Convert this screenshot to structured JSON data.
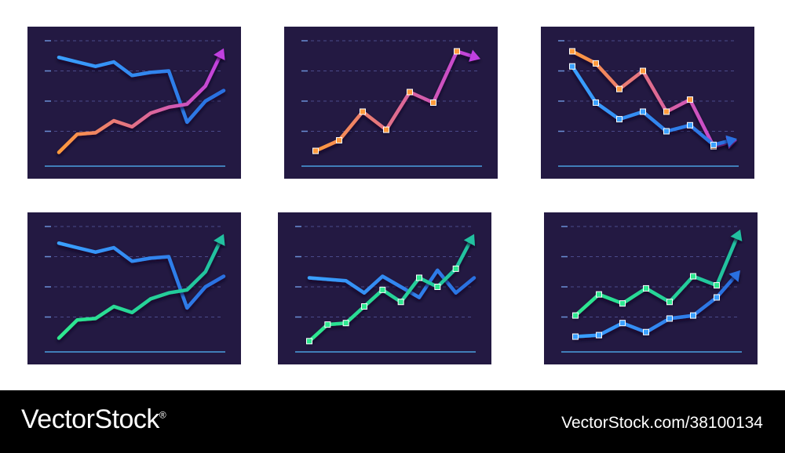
{
  "colors": {
    "background": "#ffffff",
    "panel": "#231942",
    "gridline": "#4a4a8a",
    "tick": "#6b8fd6",
    "baseline": "#4aa0e0",
    "footer": "#000000",
    "footer_text": "#ffffff",
    "blue": [
      "#3aa0ff",
      "#2a6fe0"
    ],
    "orange_pink": [
      "#ff9a3c",
      "#c040e0"
    ],
    "green": [
      "#2ee890",
      "#20c0a0"
    ]
  },
  "chart_data": [
    {
      "type": "line",
      "x": [
        0,
        1,
        2,
        3,
        4,
        5,
        6,
        7,
        8,
        9
      ],
      "ylim": [
        0,
        4
      ],
      "grid": true,
      "series": [
        {
          "style": "blue",
          "marker": false,
          "arrow": false,
          "values": [
            3.45,
            3.3,
            3.15,
            3.3,
            2.85,
            2.95,
            3.0,
            1.3,
            2.0,
            2.35
          ]
        },
        {
          "style": "orange_pink",
          "marker": false,
          "arrow": true,
          "values": [
            0.3,
            0.9,
            0.95,
            1.35,
            1.15,
            1.6,
            1.8,
            1.9,
            2.5,
            3.75
          ]
        }
      ]
    },
    {
      "type": "line",
      "x": [
        0,
        1,
        2,
        3,
        4,
        5,
        6,
        7
      ],
      "ylim": [
        0,
        4
      ],
      "grid": true,
      "series": [
        {
          "style": "orange_pink",
          "marker": true,
          "arrow": true,
          "values": [
            0.35,
            0.7,
            1.65,
            1.05,
            2.3,
            1.95,
            3.65,
            3.4
          ]
        }
      ]
    },
    {
      "type": "line",
      "x": [
        0,
        1,
        2,
        3,
        4,
        5,
        6,
        7
      ],
      "ylim": [
        0,
        4
      ],
      "grid": true,
      "series": [
        {
          "style": "orange_pink",
          "marker": true,
          "arrow": true,
          "values": [
            3.65,
            3.25,
            2.4,
            3.0,
            1.65,
            2.05,
            0.5,
            0.7
          ]
        },
        {
          "style": "blue",
          "marker": true,
          "arrow": true,
          "values": [
            3.15,
            1.95,
            1.4,
            1.65,
            1.0,
            1.2,
            0.55,
            0.75
          ]
        }
      ]
    },
    {
      "type": "line",
      "x": [
        0,
        1,
        2,
        3,
        4,
        5,
        6,
        7,
        8,
        9
      ],
      "ylim": [
        0,
        4
      ],
      "grid": true,
      "series": [
        {
          "style": "blue",
          "marker": false,
          "arrow": false,
          "values": [
            3.45,
            3.3,
            3.15,
            3.3,
            2.85,
            2.95,
            3.0,
            1.3,
            2.0,
            2.35
          ]
        },
        {
          "style": "green",
          "marker": false,
          "arrow": true,
          "values": [
            0.3,
            0.9,
            0.95,
            1.35,
            1.15,
            1.6,
            1.8,
            1.9,
            2.5,
            3.75
          ]
        }
      ]
    },
    {
      "type": "line",
      "x": [
        0,
        1,
        2,
        3,
        4,
        5,
        6,
        7,
        8,
        9
      ],
      "ylim": [
        0,
        4
      ],
      "grid": true,
      "series": [
        {
          "style": "blue",
          "marker": false,
          "arrow": false,
          "values": [
            2.3,
            2.25,
            2.2,
            1.8,
            2.35,
            2.0,
            1.65,
            2.55,
            1.8,
            2.3
          ]
        },
        {
          "style": "green",
          "marker": true,
          "arrow": true,
          "values": [
            0.2,
            0.75,
            0.8,
            1.35,
            1.9,
            1.5,
            2.3,
            2.0,
            2.6,
            3.75
          ]
        }
      ]
    },
    {
      "type": "line",
      "x": [
        0,
        1,
        2,
        3,
        4,
        5,
        6,
        7
      ],
      "ylim": [
        0,
        4
      ],
      "grid": true,
      "series": [
        {
          "style": "green",
          "marker": true,
          "arrow": true,
          "values": [
            1.05,
            1.75,
            1.45,
            1.95,
            1.5,
            2.35,
            2.05,
            3.9
          ]
        },
        {
          "style": "blue",
          "marker": true,
          "arrow": true,
          "values": [
            0.35,
            0.4,
            0.8,
            0.5,
            0.95,
            1.05,
            1.65,
            2.55
          ]
        }
      ]
    }
  ],
  "footer": {
    "brand": "VectorStock",
    "brand_mark": "®",
    "image_id": "VectorStock.com/38100134"
  }
}
